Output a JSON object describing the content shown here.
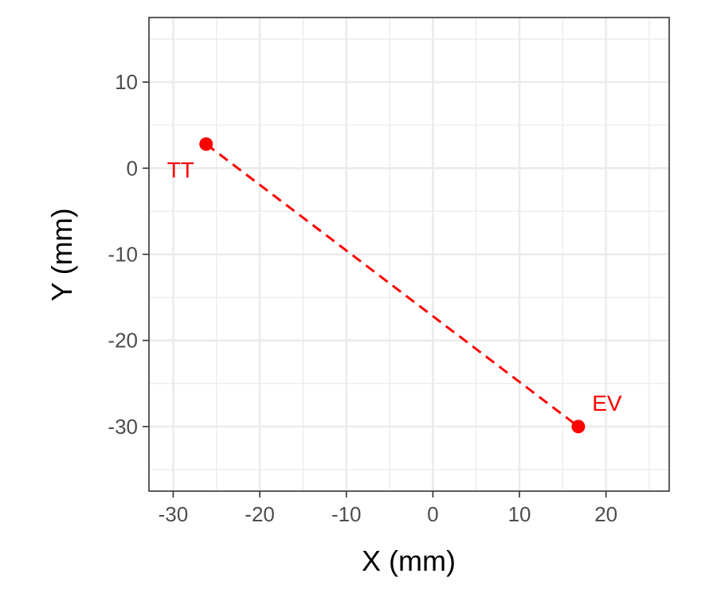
{
  "chart_data": {
    "type": "scatter",
    "xlabel": "X (mm)",
    "ylabel": "Y (mm)",
    "xlim": [
      -32.8,
      27.3
    ],
    "ylim": [
      -37.5,
      17.5
    ],
    "x_ticks": [
      -30,
      -20,
      -10,
      0,
      10,
      20
    ],
    "y_ticks": [
      10,
      0,
      -10,
      -20,
      -30
    ],
    "x_tick_labels": [
      "-30",
      "-20",
      "-10",
      "0",
      "10",
      "20"
    ],
    "y_tick_labels": [
      "10",
      "0",
      "-10",
      "-20",
      "-30"
    ],
    "grid": true,
    "color": "#ff0000",
    "points": [
      {
        "label": "TT",
        "x": -26.2,
        "y": 2.8
      },
      {
        "label": "EV",
        "x": 16.8,
        "y": -30.0
      }
    ],
    "connector": "dashed"
  }
}
